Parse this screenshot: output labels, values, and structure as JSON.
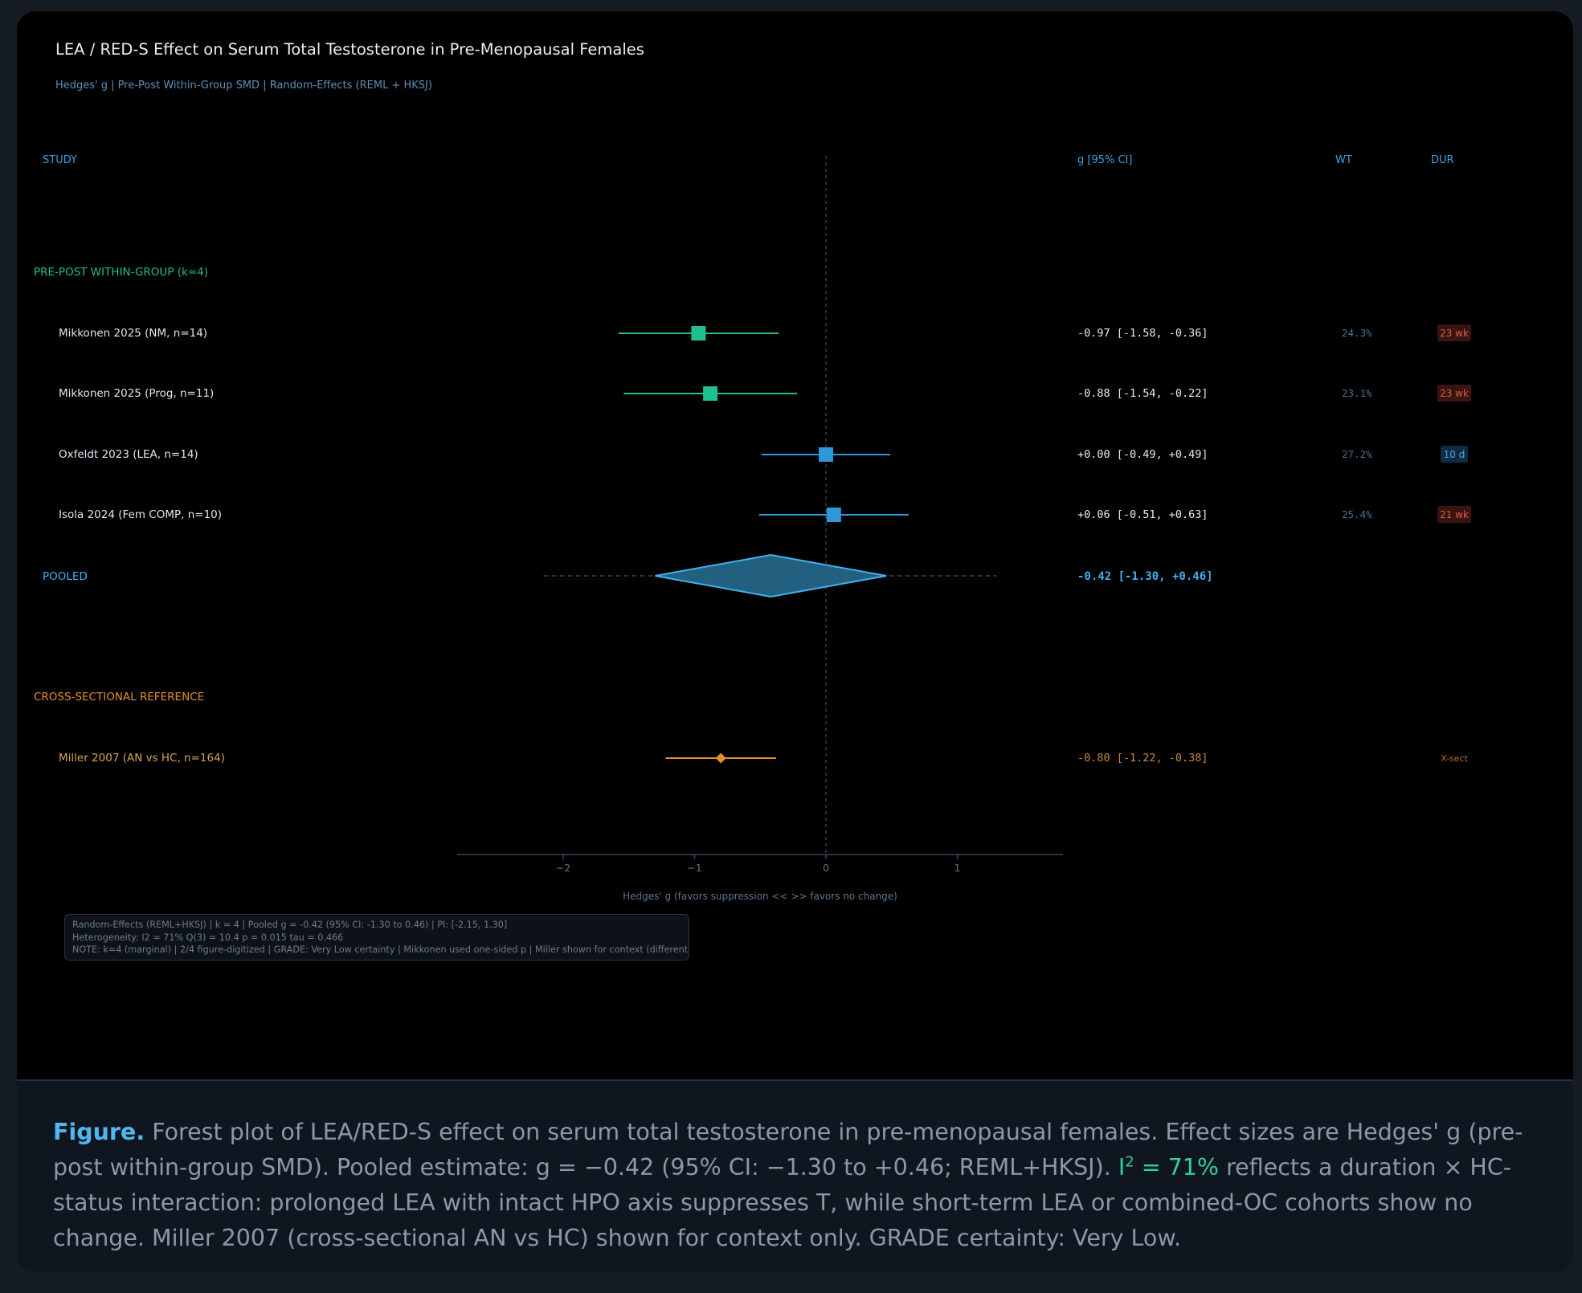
{
  "chart_data": {
    "type": "forest",
    "title": "LEA / RED-S Effect on Serum Total Testosterone in Pre-Menopausal Females",
    "subtitle": "Hedges' g | Pre-Post Within-Group SMD | Random-Effects (REML + HKSJ)",
    "columns": {
      "study": "STUDY",
      "effect": "g [95% CI]",
      "weight": "WT",
      "duration": "DUR"
    },
    "xlabel": "Hedges' g (favors suppression <<   >> favors no change)",
    "xlim": [
      -2.8,
      1.8
    ],
    "xticks": [
      -2,
      -1,
      0,
      1
    ],
    "xtick_labels": [
      "−2",
      "−1",
      "0",
      "1"
    ],
    "groups": [
      {
        "label": "PRE-POST WITHIN-GROUP (k=4)",
        "color": "#1fbf90",
        "studies": [
          {
            "name": "Mikkonen 2025 (NM, n=14)",
            "g": -0.97,
            "lo": -1.58,
            "hi": -0.36,
            "ci_text": "-0.97  [-1.58, -0.36]",
            "weight": "24.3%",
            "dur": "23 wk",
            "dur_kind": "long",
            "color": "#1fbf90",
            "marker": "square"
          },
          {
            "name": "Mikkonen 2025 (Prog, n=11)",
            "g": -0.88,
            "lo": -1.54,
            "hi": -0.22,
            "ci_text": "-0.88  [-1.54, -0.22]",
            "weight": "23.1%",
            "dur": "23 wk",
            "dur_kind": "long",
            "color": "#1fbf90",
            "marker": "square"
          },
          {
            "name": "Oxfeldt 2023 (LEA, n=14)",
            "g": 0.0,
            "lo": -0.49,
            "hi": 0.49,
            "ci_text": "+0.00  [-0.49, +0.49]",
            "weight": "27.2%",
            "dur": "10 d",
            "dur_kind": "short",
            "color": "#2e97dc",
            "marker": "square"
          },
          {
            "name": "Isola 2024 (Fem COMP, n=10)",
            "g": 0.06,
            "lo": -0.51,
            "hi": 0.63,
            "ci_text": "+0.06  [-0.51, +0.63]",
            "weight": "25.4%",
            "dur": "21 wk",
            "dur_kind": "long",
            "color": "#2e97dc",
            "marker": "square"
          }
        ],
        "pooled": {
          "label": "POOLED",
          "g": -0.42,
          "lo": -1.3,
          "hi": 0.46,
          "pi_lo": -2.15,
          "pi_hi": 1.3,
          "ci_text": "-0.42  [-1.30, +0.46]"
        }
      },
      {
        "label": "CROSS-SECTIONAL REFERENCE",
        "color": "#e8902a",
        "studies": [
          {
            "name": "Miller 2007 (AN vs HC, n=164)",
            "g": -0.8,
            "lo": -1.22,
            "hi": -0.38,
            "ci_text": "-0.80  [-1.22, -0.38]",
            "weight": "",
            "dur": "X-sect",
            "dur_kind": "xsect",
            "color": "#e8902a",
            "marker": "diamond"
          }
        ]
      }
    ],
    "notes": [
      "Random-Effects (REML+HKSJ) | k = 4 | Pooled g = -0.42 (95% CI: -1.30 to 0.46) | PI: [-2.15, 1.30]",
      "Heterogeneity: I2 = 71%  Q(3) = 10.4  p = 0.015  tau = 0.466",
      "NOTE: k=4 (marginal) | 2/4 figure-digitized | GRADE: Very Low certainty | Mikkonen used one-sided p | Miller shown for context (different design)"
    ],
    "colors": {
      "title": "#e6edf3",
      "subtitle": "#5d8fb5",
      "header": "#3aa3e0",
      "axis": "#33465c",
      "pooled": "#3fb2ec",
      "pooled_fill": "#23607f",
      "dur_long_bg": "#3a1411",
      "dur_long_fg": "#d65c4c",
      "dur_short_bg": "#0e2c44",
      "dur_short_fg": "#4aa6e6",
      "xsect_fg": "#b56d22"
    }
  },
  "caption": {
    "lead": "Figure.",
    "part1": " Forest plot of LEA/RED-S effect on serum total testosterone in pre-menopausal females. Effect sizes are Hedges' g (pre-post within-group SMD). Pooled estimate: g = −0.42 (95% CI: −1.30 to +0.46; REML+HKSJ). ",
    "i2_base": "I",
    "i2_sup": "2",
    "i2_rest": " = 71%",
    "part2": " reflects a duration × HC-status interaction: prolonged LEA with intact HPO axis suppresses T, while short-term LEA or combined-OC cohorts show no change. Miller 2007 (cross-sectional AN vs HC) shown for context only. GRADE certainty: Very Low."
  }
}
